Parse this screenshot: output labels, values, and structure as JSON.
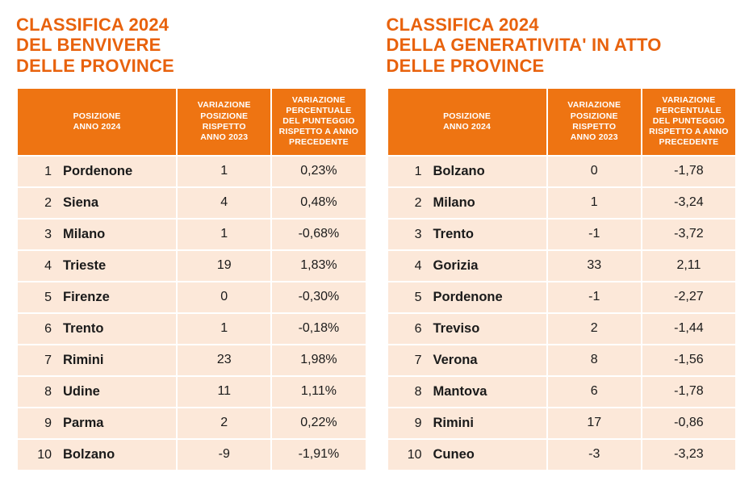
{
  "colors": {
    "accent": "#e8620d",
    "header_bg": "#ee7412",
    "cell_bg": "#fce8d9",
    "text": "#1a1a1a",
    "header_text": "#ffffff"
  },
  "left": {
    "title": "CLASSIFICA 2024\nDEL BENVIVERE\nDELLE PROVINCE",
    "headers": {
      "pos": "POSIZIONE\nANNO 2024",
      "var": "VARIAZIONE\nPOSIZIONE\nRISPETTO\nANNO 2023",
      "pct": "VARIAZIONE\nPERCENTUALE\nDEL PUNTEGGIO\nRISPETTO A ANNO\nPRECEDENTE"
    },
    "rows": [
      {
        "rank": "1",
        "city": "Pordenone",
        "var": "1",
        "pct": "0,23%"
      },
      {
        "rank": "2",
        "city": "Siena",
        "var": "4",
        "pct": "0,48%"
      },
      {
        "rank": "3",
        "city": "Milano",
        "var": "1",
        "pct": "-0,68%"
      },
      {
        "rank": "4",
        "city": "Trieste",
        "var": "19",
        "pct": "1,83%"
      },
      {
        "rank": "5",
        "city": "Firenze",
        "var": "0",
        "pct": "-0,30%"
      },
      {
        "rank": "6",
        "city": "Trento",
        "var": "1",
        "pct": "-0,18%"
      },
      {
        "rank": "7",
        "city": "Rimini",
        "var": "23",
        "pct": "1,98%"
      },
      {
        "rank": "8",
        "city": "Udine",
        "var": "11",
        "pct": "1,11%"
      },
      {
        "rank": "9",
        "city": "Parma",
        "var": "2",
        "pct": "0,22%"
      },
      {
        "rank": "10",
        "city": "Bolzano",
        "var": "-9",
        "pct": "-1,91%"
      }
    ]
  },
  "right": {
    "title": "CLASSIFICA 2024\nDELLA GENERATIVITA' IN ATTO\nDELLE PROVINCE",
    "headers": {
      "pos": "POSIZIONE\nANNO 2024",
      "var": "VARIAZIONE\nPOSIZIONE\nRISPETTO\nANNO 2023",
      "pct": "VARIAZIONE\nPERCENTUALE\nDEL PUNTEGGIO\nRISPETTO A ANNO\nPRECEDENTE"
    },
    "rows": [
      {
        "rank": "1",
        "city": "Bolzano",
        "var": "0",
        "pct": "-1,78"
      },
      {
        "rank": "2",
        "city": "Milano",
        "var": "1",
        "pct": "-3,24"
      },
      {
        "rank": "3",
        "city": "Trento",
        "var": "-1",
        "pct": "-3,72"
      },
      {
        "rank": "4",
        "city": "Gorizia",
        "var": "33",
        "pct": "2,11"
      },
      {
        "rank": "5",
        "city": "Pordenone",
        "var": "-1",
        "pct": "-2,27"
      },
      {
        "rank": "6",
        "city": "Treviso",
        "var": "2",
        "pct": "-1,44"
      },
      {
        "rank": "7",
        "city": "Verona",
        "var": "8",
        "pct": "-1,56"
      },
      {
        "rank": "8",
        "city": "Mantova",
        "var": "6",
        "pct": "-1,78"
      },
      {
        "rank": "9",
        "city": "Rimini",
        "var": "17",
        "pct": "-0,86"
      },
      {
        "rank": "10",
        "city": "Cuneo",
        "var": "-3",
        "pct": "-3,23"
      }
    ]
  }
}
